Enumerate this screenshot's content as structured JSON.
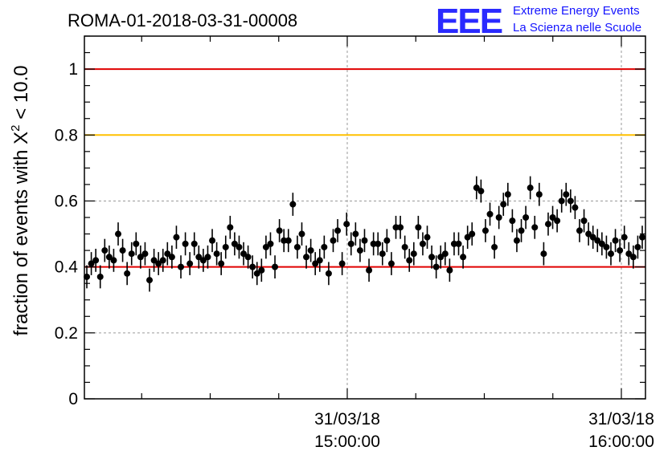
{
  "logo": {
    "mark": "EEE",
    "line1": "Extreme Energy Events",
    "line2": "La Scienza nelle Scuole"
  },
  "chart_data": {
    "type": "scatter",
    "title": "ROMA-01-2018-03-31-00008",
    "xlabel": "",
    "ylabel": "fraction of events with X² < 10.0",
    "ylabel_parts": {
      "base": "fraction of events with X",
      "sup": "2",
      "tail": " < 10.0"
    },
    "xlim": [
      "31/03/18 14:02:30",
      "31/03/18 16:05:00"
    ],
    "ylim": [
      0,
      1.1
    ],
    "yticks": [
      "0",
      "0.2",
      "0.4",
      "0.6",
      "0.8",
      "1"
    ],
    "xticks": [
      {
        "date": "31/03/18",
        "time": "15:00:00"
      },
      {
        "date": "31/03/18",
        "time": "16:00:00"
      }
    ],
    "grid": true,
    "reference_lines": [
      {
        "y": 1.0,
        "color": "#e00000"
      },
      {
        "y": 0.8,
        "color": "#ffc000"
      },
      {
        "y": 0.4,
        "color": "#e00000"
      }
    ],
    "marker_color": "#000000",
    "error_bar": 0.035,
    "series": [
      {
        "values": [
          0.37,
          0.41,
          0.42,
          0.37,
          0.45,
          0.43,
          0.42,
          0.5,
          0.45,
          0.38,
          0.44,
          0.47,
          0.43,
          0.44,
          0.36,
          0.42,
          0.41,
          0.42,
          0.44,
          0.43,
          0.49,
          0.4,
          0.47,
          0.41,
          0.47,
          0.43,
          0.42,
          0.43,
          0.48,
          0.44,
          0.41,
          0.46,
          0.52,
          0.47,
          0.46,
          0.44,
          0.43,
          0.4,
          0.38,
          0.39,
          0.46,
          0.47,
          0.4,
          0.51,
          0.48,
          0.48,
          0.59,
          0.46,
          0.5,
          0.43,
          0.45,
          0.41,
          0.42,
          0.46,
          0.38,
          0.48,
          0.51,
          0.41,
          0.53,
          0.47,
          0.5,
          0.45,
          0.48,
          0.39,
          0.47,
          0.47,
          0.44,
          0.48,
          0.41,
          0.52,
          0.52,
          0.46,
          0.42,
          0.44,
          0.52,
          0.47,
          0.49,
          0.43,
          0.4,
          0.43,
          0.44,
          0.39,
          0.47,
          0.47,
          0.43,
          0.49,
          0.5,
          0.64,
          0.63,
          0.51,
          0.56,
          0.46,
          0.55,
          0.59,
          0.62,
          0.54,
          0.48,
          0.51,
          0.55,
          0.64,
          0.52,
          0.62,
          0.44,
          0.53,
          0.55,
          0.54,
          0.6,
          0.62,
          0.6,
          0.58,
          0.51,
          0.54,
          0.5,
          0.49,
          0.48,
          0.47,
          0.46,
          0.44,
          0.48,
          0.45,
          0.49,
          0.44,
          0.43,
          0.46,
          0.49
        ]
      }
    ]
  }
}
